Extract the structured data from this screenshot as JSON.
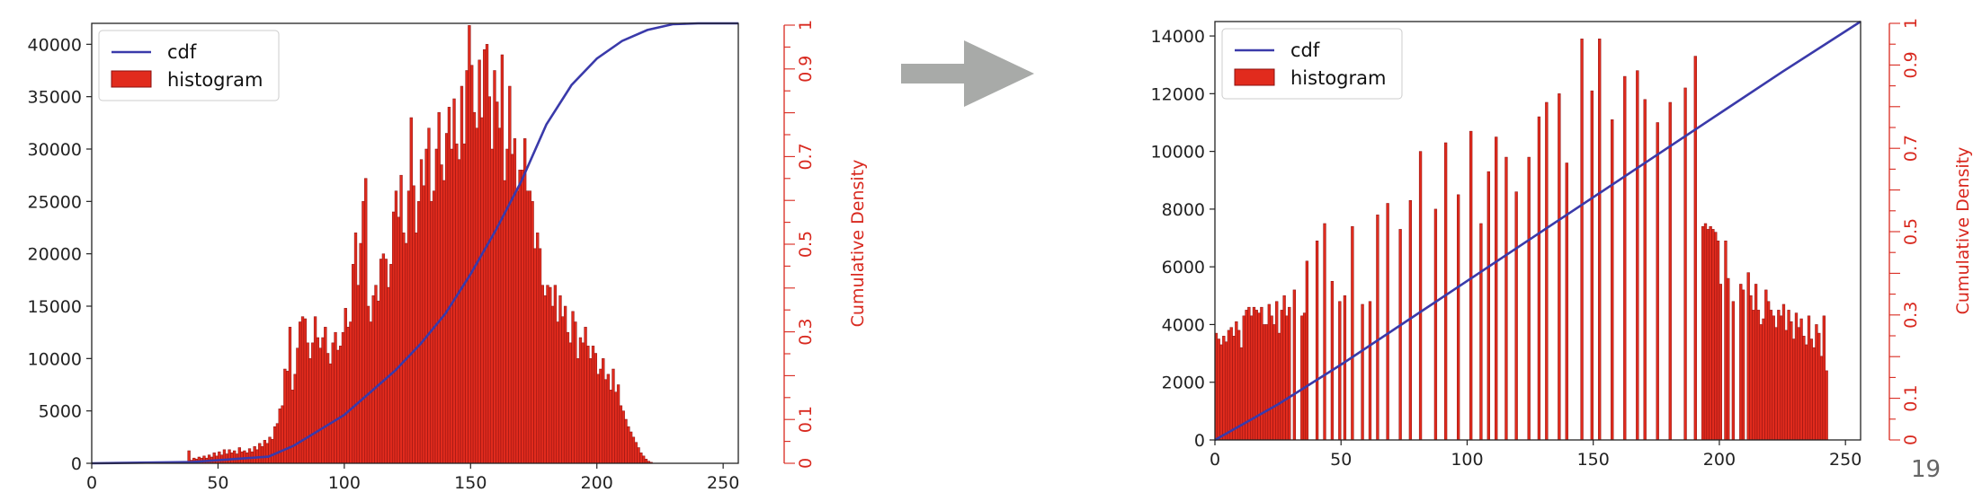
{
  "slide_number": "19",
  "colors": {
    "histogram": "#e12b1d",
    "histogram_edge": "#8a1010",
    "cdf": "#3a3aaa",
    "right_axis": "#d8281e",
    "arrow": "#a8aaa8"
  },
  "chart_data": [
    {
      "type": "bar",
      "title": "",
      "xlabel": "",
      "ylabel": "",
      "right_ylabel": "Cumulative Density",
      "xlim": [
        0,
        256
      ],
      "ylim": [
        0,
        42000
      ],
      "x_ticks": [
        0,
        50,
        100,
        150,
        200,
        250
      ],
      "y_ticks": [
        0,
        5000,
        10000,
        15000,
        20000,
        25000,
        30000,
        35000,
        40000
      ],
      "right_ylim": [
        0,
        1
      ],
      "right_ticks": [
        "0",
        "0.1",
        "0.3",
        "0.5",
        "0.7",
        "0.9",
        "1"
      ],
      "legend": {
        "placement": "top-left",
        "entries": [
          "cdf",
          "histogram"
        ]
      },
      "grid": false,
      "histogram": {
        "name": "histogram",
        "start": 0,
        "bin_width": 1,
        "values": [
          0,
          0,
          0,
          0,
          0,
          0,
          0,
          0,
          0,
          0,
          0,
          0,
          0,
          0,
          0,
          0,
          0,
          0,
          0,
          0,
          0,
          0,
          0,
          0,
          0,
          0,
          0,
          0,
          0,
          0,
          0,
          0,
          0,
          0,
          0,
          0,
          0,
          0,
          1200,
          300,
          500,
          400,
          600,
          500,
          700,
          500,
          800,
          600,
          1000,
          700,
          1100,
          800,
          1300,
          900,
          1300,
          1000,
          1200,
          900,
          1500,
          1100,
          1200,
          1000,
          1400,
          1100,
          1600,
          1300,
          1900,
          1600,
          2200,
          1900,
          2500,
          2300,
          3500,
          3800,
          5200,
          5500,
          9000,
          8800,
          13000,
          7000,
          8500,
          11000,
          13500,
          14000,
          13800,
          11500,
          10000,
          11500,
          14000,
          12000,
          11000,
          12000,
          13000,
          10500,
          9500,
          11500,
          12500,
          10800,
          11200,
          12500,
          14800,
          13000,
          13500,
          19000,
          22000,
          17000,
          21000,
          25000,
          27200,
          15000,
          13500,
          16000,
          17000,
          15500,
          19500,
          20000,
          19500,
          16800,
          19000,
          24000,
          26000,
          23500,
          27500,
          22000,
          21000,
          26000,
          33000,
          26500,
          22000,
          25000,
          29000,
          26500,
          30000,
          32000,
          25000,
          26000,
          30000,
          33500,
          28500,
          27000,
          31500,
          34000,
          30000,
          34800,
          30500,
          29000,
          36000,
          30500,
          37500,
          41800,
          38000,
          33500,
          32000,
          38500,
          33000,
          39500,
          40000,
          35000,
          30000,
          37500,
          34500,
          32000,
          39000,
          27000,
          30000,
          36000,
          29500,
          31000,
          26000,
          28000,
          28000,
          31000,
          26000,
          26000,
          25000,
          20500,
          22000,
          20500,
          17000,
          16000,
          17000,
          16800,
          15000,
          17000,
          13500,
          16000,
          14000,
          15000,
          12500,
          11500,
          14500,
          13500,
          10000,
          12000,
          11500,
          13000,
          11200,
          10000,
          11200,
          10500,
          8500,
          9000,
          10000,
          8000,
          8500,
          7000,
          9000,
          6800,
          7500,
          5500,
          5000,
          4200,
          3500,
          3000,
          2500,
          2000,
          1500,
          1000,
          700,
          400,
          200,
          100,
          0,
          0,
          0,
          0,
          0,
          0,
          0,
          0,
          0,
          0,
          0,
          0,
          0,
          0,
          0,
          0,
          0,
          0,
          0,
          0,
          0,
          0,
          0,
          0,
          0,
          0
        ]
      },
      "cdf": {
        "name": "cdf",
        "x": [
          0,
          40,
          70,
          80,
          90,
          100,
          110,
          120,
          130,
          140,
          150,
          160,
          170,
          180,
          190,
          200,
          210,
          220,
          230,
          240,
          256
        ],
        "y": [
          0.0,
          0.003,
          0.015,
          0.04,
          0.075,
          0.11,
          0.16,
          0.21,
          0.27,
          0.34,
          0.43,
          0.53,
          0.64,
          0.77,
          0.86,
          0.92,
          0.96,
          0.985,
          0.998,
          1.0,
          1.0
        ]
      }
    },
    {
      "type": "bar",
      "title": "",
      "xlabel": "",
      "ylabel": "",
      "right_ylabel": "Cumulative Density",
      "xlim": [
        0,
        256
      ],
      "ylim": [
        0,
        14500
      ],
      "x_ticks": [
        0,
        50,
        100,
        150,
        200,
        250
      ],
      "y_ticks": [
        0,
        2000,
        4000,
        6000,
        8000,
        10000,
        12000,
        14000
      ],
      "right_ylim": [
        0,
        1
      ],
      "right_ticks": [
        "0",
        "0.1",
        "0.3",
        "0.5",
        "0.7",
        "0.9",
        "1"
      ],
      "legend": {
        "placement": "top-left",
        "entries": [
          "cdf",
          "histogram"
        ]
      },
      "grid": false,
      "histogram": {
        "name": "histogram",
        "start": 0,
        "bin_width": 1,
        "values": [
          3700,
          3500,
          3300,
          3600,
          3400,
          3800,
          3900,
          3600,
          4100,
          3800,
          3200,
          4300,
          4500,
          4600,
          4300,
          4600,
          4500,
          4400,
          4600,
          4000,
          4000,
          4700,
          4300,
          4000,
          4800,
          3700,
          4500,
          5000,
          4300,
          4600,
          0,
          5200,
          0,
          0,
          4300,
          4400,
          6200,
          0,
          0,
          0,
          6900,
          0,
          0,
          7500,
          0,
          0,
          5500,
          0,
          0,
          4800,
          0,
          5000,
          0,
          0,
          7400,
          0,
          0,
          0,
          4700,
          0,
          0,
          4800,
          0,
          0,
          7800,
          0,
          0,
          0,
          8200,
          0,
          0,
          0,
          0,
          7300,
          0,
          0,
          0,
          8300,
          0,
          0,
          0,
          10000,
          0,
          0,
          0,
          0,
          0,
          8000,
          0,
          0,
          0,
          10300,
          0,
          0,
          0,
          0,
          8500,
          0,
          0,
          0,
          0,
          10700,
          0,
          0,
          0,
          7500,
          0,
          0,
          9300,
          0,
          0,
          10500,
          0,
          0,
          0,
          9800,
          0,
          0,
          0,
          8600,
          0,
          0,
          0,
          0,
          9800,
          0,
          0,
          0,
          11200,
          0,
          0,
          11700,
          0,
          0,
          0,
          0,
          12000,
          0,
          0,
          9600,
          0,
          0,
          0,
          0,
          0,
          13900,
          0,
          0,
          0,
          12100,
          0,
          0,
          13900,
          0,
          0,
          0,
          0,
          11100,
          0,
          0,
          0,
          0,
          12600,
          0,
          0,
          0,
          0,
          12800,
          0,
          0,
          11800,
          0,
          0,
          0,
          0,
          11000,
          0,
          0,
          0,
          0,
          11700,
          0,
          0,
          0,
          0,
          0,
          12200,
          0,
          0,
          0,
          13300,
          0,
          0,
          7400,
          7500,
          7300,
          7400,
          7300,
          7200,
          6900,
          5400,
          0,
          6900,
          5600,
          0,
          4800,
          0,
          0,
          5400,
          5200,
          0,
          5800,
          5000,
          4500,
          5400,
          4500,
          4000,
          4200,
          5200,
          4800,
          4500,
          4300,
          3900,
          4500,
          4300,
          4700,
          3800,
          4500,
          4100,
          3500,
          4400,
          3900,
          4200,
          3600,
          3300,
          4300,
          3500,
          3200,
          4000,
          3700,
          2900,
          4300,
          2400
        ]
      },
      "cdf": {
        "name": "cdf",
        "x": [
          0,
          25,
          50,
          75,
          100,
          125,
          150,
          175,
          200,
          225,
          256
        ],
        "y": [
          0.0,
          0.085,
          0.18,
          0.28,
          0.38,
          0.48,
          0.58,
          0.68,
          0.78,
          0.88,
          1.0
        ]
      }
    }
  ]
}
